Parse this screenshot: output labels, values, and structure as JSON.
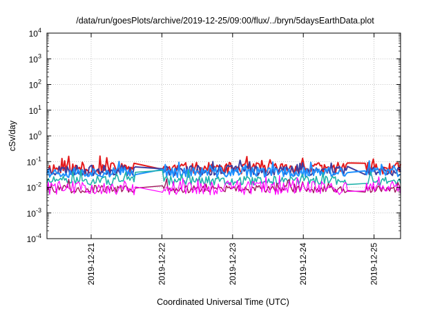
{
  "chart_data": {
    "type": "line",
    "title": "/data/run/goesPlots/archive/2019-12-25/09:00/flux/../bryn/5daysEarthData.plot",
    "xlabel": "Coordinated Universal Time (UTC)",
    "ylabel": "cSv/day",
    "yscale": "log",
    "ylim": [
      0.0001,
      10000
    ],
    "y_ticks": [
      {
        "exp": -4,
        "base": "10",
        "sup": "-4"
      },
      {
        "exp": -3,
        "base": "10",
        "sup": "-3"
      },
      {
        "exp": -2,
        "base": "10",
        "sup": "-2"
      },
      {
        "exp": -1,
        "base": "10",
        "sup": "-1"
      },
      {
        "exp": 0,
        "base": "10",
        "sup": "0"
      },
      {
        "exp": 1,
        "base": "10",
        "sup": "1"
      },
      {
        "exp": 2,
        "base": "10",
        "sup": "2"
      },
      {
        "exp": 3,
        "base": "10",
        "sup": "3"
      },
      {
        "exp": 4,
        "base": "10",
        "sup": "4"
      }
    ],
    "xlim": [
      "2019-12-20T09:00",
      "2019-12-25T09:00"
    ],
    "x_ticks": [
      "2019-12-21",
      "2019-12-22",
      "2019-12-23",
      "2019-12-24",
      "2019-12-25"
    ],
    "grid": true,
    "series": [
      {
        "color": "#e41a1c",
        "level": 0.055,
        "spread": 0.45,
        "spike": 0.07,
        "seed": 11,
        "width": 2.0
      },
      {
        "color": "#3d3d9e",
        "level": 0.045,
        "spread": 0.4,
        "spike": 0.06,
        "seed": 23,
        "width": 2.0
      },
      {
        "color": "#1e90ff",
        "level": 0.038,
        "spread": 0.4,
        "spike": 0.06,
        "seed": 37,
        "width": 2.0
      },
      {
        "color": "#20b2aa",
        "level": 0.018,
        "spread": 0.35,
        "spike": 0.05,
        "seed": 51,
        "width": 1.6
      },
      {
        "color": "#a0155c",
        "level": 0.0085,
        "spread": 0.3,
        "spike": 0.04,
        "seed": 67,
        "width": 1.4
      },
      {
        "color": "#ff00ff",
        "level": 0.0095,
        "spread": 0.55,
        "spike": 0.05,
        "seed": 79,
        "width": 1.2
      }
    ],
    "data_gaps": [
      {
        "start": "2019-12-21T15:00",
        "end": "2019-12-22T00:00"
      },
      {
        "start": "2019-12-24T15:00",
        "end": "2019-12-24T21:00"
      }
    ]
  }
}
